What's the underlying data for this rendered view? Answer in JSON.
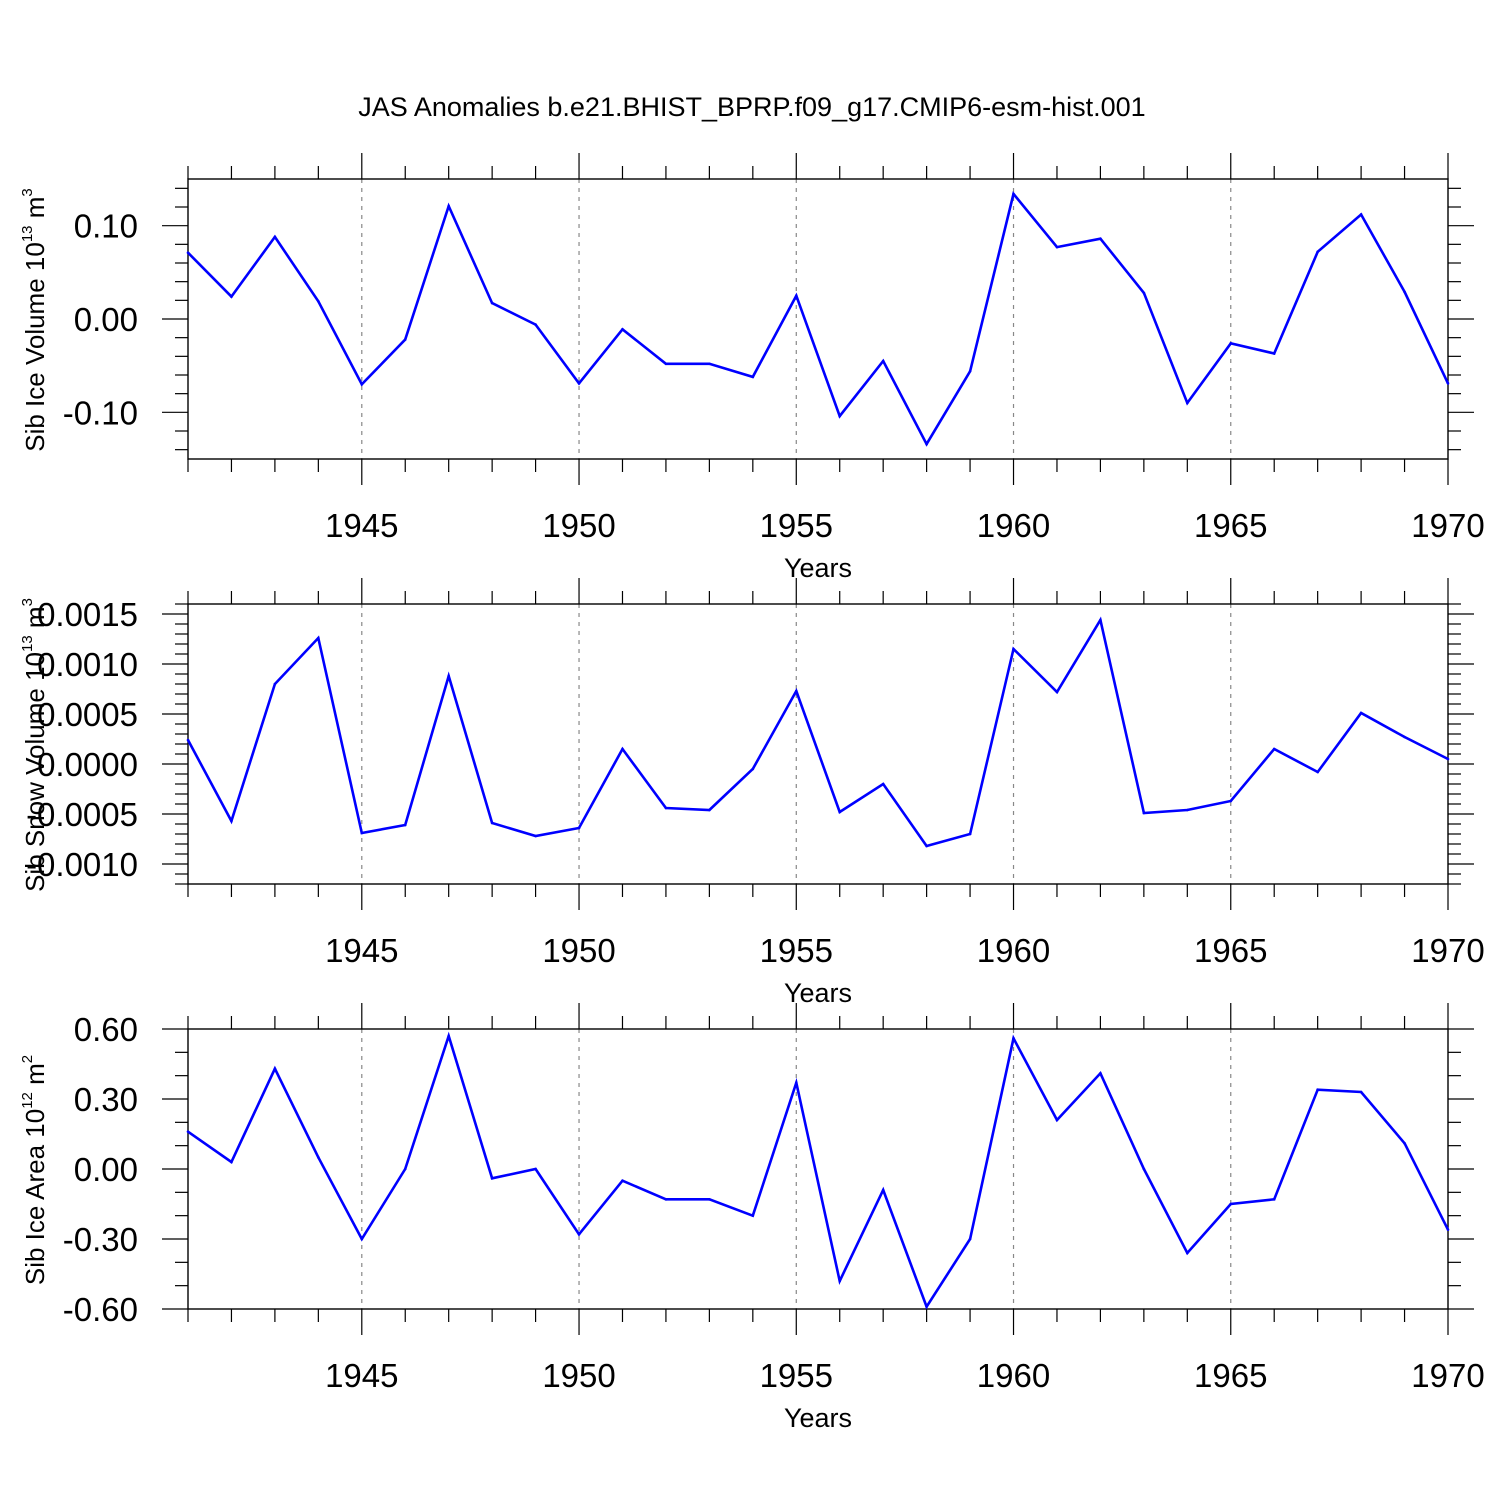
{
  "figure": {
    "title": "JAS Anomalies b.e21.BHIST_BPRP.f09_g17.CMIP6-esm-hist.001"
  },
  "style": {
    "line_color": "#0000ff",
    "axis_color": "#000000",
    "gridline_color": "#888888"
  },
  "chart_data": [
    {
      "type": "line",
      "name": "panel-volume",
      "ylabel": {
        "main": "Sib Ice Volume 10",
        "exp1": "13",
        "unit": " m",
        "exp2": "3"
      },
      "xlabel": "Years",
      "xlim": [
        1941,
        1970
      ],
      "ylim": [
        -0.15,
        0.15
      ],
      "yticks": [
        0.1,
        0.0,
        -0.1
      ],
      "yticklabels": [
        "0.10",
        "0.00",
        "-0.10"
      ],
      "yminor": 0.02,
      "xticks": [
        1945,
        1950,
        1955,
        1960,
        1965,
        1970
      ],
      "xticklabels": [
        "1945",
        "1950",
        "1955",
        "1960",
        "1965",
        "1970"
      ],
      "x": [
        1941,
        1942,
        1943,
        1944,
        1945,
        1946,
        1947,
        1948,
        1949,
        1950,
        1951,
        1952,
        1953,
        1954,
        1955,
        1956,
        1957,
        1958,
        1959,
        1960,
        1961,
        1962,
        1963,
        1964,
        1965,
        1966,
        1967,
        1968,
        1969,
        1970
      ],
      "values": [
        0.071,
        0.024,
        0.088,
        0.019,
        -0.07,
        -0.022,
        0.121,
        0.017,
        -0.006,
        -0.069,
        -0.011,
        -0.048,
        -0.048,
        -0.062,
        0.025,
        -0.104,
        -0.045,
        -0.134,
        -0.056,
        0.134,
        0.077,
        0.086,
        0.028,
        -0.09,
        -0.026,
        -0.037,
        0.072,
        0.112,
        0.029,
        -0.069
      ]
    },
    {
      "type": "line",
      "name": "panel-snow",
      "ylabel": {
        "main": "Sib Snow Volume 10",
        "exp1": "13",
        "unit": " m",
        "exp2": "3"
      },
      "xlabel": "Years",
      "xlim": [
        1941,
        1970
      ],
      "ylim": [
        -0.0012,
        0.0016
      ],
      "yticks": [
        0.0015,
        0.001,
        0.0005,
        0.0,
        -0.0005,
        -0.001
      ],
      "yticklabels": [
        "0.0015",
        "0.0010",
        "0.0005",
        "0.0000",
        "-0.0005",
        "-0.0010"
      ],
      "yminor": 0.0001,
      "xticks": [
        1945,
        1950,
        1955,
        1960,
        1965,
        1970
      ],
      "xticklabels": [
        "1945",
        "1950",
        "1955",
        "1960",
        "1965",
        "1970"
      ],
      "x": [
        1941,
        1942,
        1943,
        1944,
        1945,
        1946,
        1947,
        1948,
        1949,
        1950,
        1951,
        1952,
        1953,
        1954,
        1955,
        1956,
        1957,
        1958,
        1959,
        1960,
        1961,
        1962,
        1963,
        1964,
        1965,
        1966,
        1967,
        1968,
        1969,
        1970
      ],
      "values": [
        0.00024,
        -0.00057,
        0.0008,
        0.00126,
        -0.00069,
        -0.00061,
        0.00088,
        -0.00059,
        -0.00072,
        -0.00064,
        0.00015,
        -0.00044,
        -0.00046,
        -5e-05,
        0.00073,
        -0.00048,
        -0.0002,
        -0.00082,
        -0.0007,
        0.00115,
        0.00072,
        0.00144,
        -0.00049,
        -0.00046,
        -0.00037,
        0.00015,
        -8e-05,
        0.00051,
        0.00027,
        5e-05
      ]
    },
    {
      "type": "line",
      "name": "panel-area",
      "ylabel": {
        "main": "Sib Ice Area 10",
        "exp1": "12",
        "unit": " m",
        "exp2": "2"
      },
      "xlabel": "Years",
      "xlim": [
        1941,
        1970
      ],
      "ylim": [
        -0.6,
        0.6
      ],
      "yticks": [
        0.6,
        0.3,
        0.0,
        -0.3,
        -0.6
      ],
      "yticklabels": [
        "0.60",
        "0.30",
        "0.00",
        "-0.30",
        "-0.60"
      ],
      "yminor": 0.1,
      "xticks": [
        1945,
        1950,
        1955,
        1960,
        1965,
        1970
      ],
      "xticklabels": [
        "1945",
        "1950",
        "1955",
        "1960",
        "1965",
        "1970"
      ],
      "x": [
        1941,
        1942,
        1943,
        1944,
        1945,
        1946,
        1947,
        1948,
        1949,
        1950,
        1951,
        1952,
        1953,
        1954,
        1955,
        1956,
        1957,
        1958,
        1959,
        1960,
        1961,
        1962,
        1963,
        1964,
        1965,
        1966,
        1967,
        1968,
        1969,
        1970
      ],
      "values": [
        0.16,
        0.03,
        0.43,
        0.05,
        -0.3,
        0.0,
        0.57,
        -0.04,
        0.0,
        -0.28,
        -0.05,
        -0.13,
        -0.13,
        -0.2,
        0.37,
        -0.48,
        -0.09,
        -0.59,
        -0.3,
        0.56,
        0.21,
        0.41,
        0.0,
        -0.36,
        -0.15,
        -0.13,
        0.34,
        0.33,
        0.11,
        -0.26
      ]
    }
  ]
}
